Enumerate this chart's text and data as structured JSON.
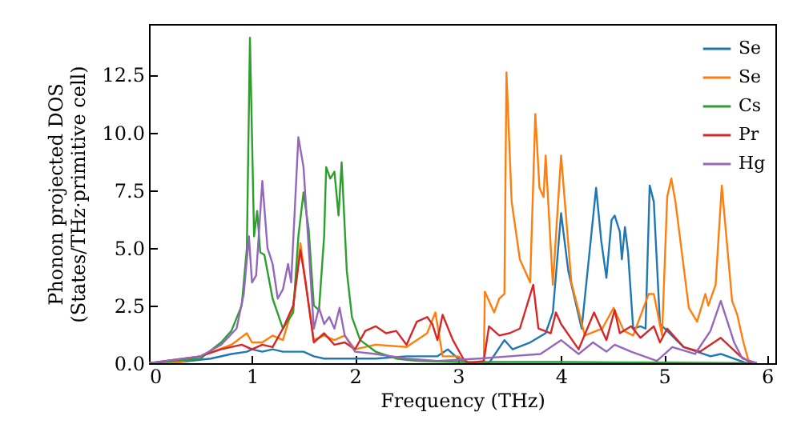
{
  "chart_data": {
    "type": "line",
    "xlabel": "Frequency (THz)",
    "ylabel": "Phonon projected DOS\n(States/THz·primitive cell)",
    "xlim": [
      0,
      6.08
    ],
    "ylim": [
      0,
      14.7
    ],
    "xticks": [
      0,
      1,
      2,
      3,
      4,
      5,
      6
    ],
    "yticks": [
      {
        "value": 0,
        "label": "0.0"
      },
      2.5,
      {
        "value": 5,
        "label": "5.0"
      },
      7.5,
      {
        "value": 10,
        "label": "10.0"
      },
      12.5
    ],
    "grid": false,
    "legend": "top right",
    "marker": "none",
    "line_style": "solid",
    "series": [
      {
        "name": "Se",
        "color": "#1f77b4",
        "x": [
          0,
          0.3,
          0.6,
          0.8,
          0.95,
          1.0,
          1.1,
          1.2,
          1.3,
          1.5,
          1.6,
          1.7,
          1.8,
          2.0,
          2.2,
          2.5,
          2.8,
          2.9,
          3.0,
          3.1,
          3.3,
          3.45,
          3.53,
          3.7,
          3.85,
          3.92,
          4.0,
          4.07,
          4.2,
          4.34,
          4.39,
          4.44,
          4.49,
          4.52,
          4.57,
          4.59,
          4.62,
          4.65,
          4.7,
          4.77,
          4.82,
          4.86,
          4.9,
          4.96,
          5.03,
          5.19,
          5.45,
          5.55,
          5.8,
          5.9
        ],
        "values": [
          0,
          0.05,
          0.2,
          0.4,
          0.5,
          0.6,
          0.5,
          0.6,
          0.5,
          0.5,
          0.3,
          0.2,
          0.2,
          0.2,
          0.2,
          0.3,
          0.3,
          0.6,
          0.2,
          0,
          0,
          1.0,
          0.6,
          0.9,
          1.3,
          2.2,
          6.5,
          4.0,
          1.5,
          7.6,
          5.3,
          3.7,
          6.2,
          6.4,
          5.7,
          4.5,
          5.9,
          4.8,
          1.5,
          1.6,
          1.5,
          7.7,
          7.0,
          1.7,
          1.4,
          0.7,
          0.3,
          0.4,
          0,
          0
        ]
      },
      {
        "name": "Se",
        "color": "#ff7f0e",
        "x": [
          0,
          0.3,
          0.5,
          0.8,
          0.95,
          1.0,
          1.1,
          1.2,
          1.3,
          1.4,
          1.47,
          1.52,
          1.6,
          1.7,
          1.8,
          1.9,
          2.0,
          2.2,
          2.5,
          2.7,
          2.78,
          2.85,
          3.0,
          3.09,
          3.25,
          3.26,
          3.35,
          3.4,
          3.45,
          3.47,
          3.52,
          3.6,
          3.7,
          3.75,
          3.79,
          3.83,
          3.85,
          3.92,
          4.0,
          4.1,
          4.23,
          4.4,
          4.51,
          4.61,
          4.7,
          4.85,
          4.9,
          4.98,
          5.03,
          5.07,
          5.11,
          5.24,
          5.32,
          5.4,
          5.43,
          5.5,
          5.56,
          5.66,
          5.71,
          5.77,
          5.82,
          5.9
        ],
        "values": [
          0,
          0.05,
          0.3,
          0.8,
          1.3,
          0.9,
          0.9,
          1.2,
          1.0,
          2.5,
          5.2,
          3.5,
          1.0,
          1.2,
          1.0,
          1.2,
          0.6,
          0.8,
          0.7,
          1.3,
          2.2,
          0.3,
          0.3,
          0,
          0,
          3.1,
          2.2,
          2.8,
          3.0,
          12.6,
          7,
          4.5,
          3.5,
          10.8,
          7.6,
          7.2,
          9.0,
          3.4,
          9.0,
          3.5,
          1.2,
          1.5,
          2.4,
          1.4,
          1.2,
          3.0,
          3.0,
          1.2,
          7.2,
          8.0,
          7.0,
          2.4,
          1.8,
          3.0,
          2.5,
          3.4,
          7.7,
          2.7,
          2.1,
          0.9,
          0.1,
          0
        ]
      },
      {
        "name": "Cs",
        "color": "#2ca02c",
        "x": [
          0,
          0.5,
          0.7,
          0.8,
          0.9,
          0.95,
          0.98,
          1.02,
          1.05,
          1.08,
          1.12,
          1.2,
          1.3,
          1.4,
          1.45,
          1.5,
          1.55,
          1.6,
          1.65,
          1.7,
          1.72,
          1.76,
          1.8,
          1.84,
          1.87,
          1.92,
          1.97,
          2.05,
          2.2,
          2.4,
          2.6,
          3.0,
          4.0,
          5.0,
          5.9
        ],
        "values": [
          0,
          0.2,
          0.9,
          1.4,
          2.5,
          5,
          14.1,
          5.5,
          6.6,
          4.8,
          4.7,
          2.8,
          1.5,
          2.2,
          5.5,
          7.4,
          5.8,
          2.5,
          2.3,
          5.5,
          8.5,
          8,
          8.3,
          6.4,
          8.7,
          4,
          2,
          1,
          0.5,
          0.2,
          0.1,
          0.05,
          0.05,
          0.03,
          0
        ]
      },
      {
        "name": "Pr",
        "color": "#d62728",
        "x": [
          0,
          0.5,
          0.7,
          0.9,
          1.0,
          1.1,
          1.2,
          1.3,
          1.4,
          1.47,
          1.52,
          1.6,
          1.7,
          1.8,
          1.9,
          2.0,
          2.1,
          2.2,
          2.3,
          2.4,
          2.5,
          2.6,
          2.7,
          2.75,
          2.8,
          2.85,
          2.95,
          3.05,
          3.1,
          3.25,
          3.3,
          3.4,
          3.5,
          3.6,
          3.73,
          3.78,
          3.9,
          3.95,
          4.0,
          4.17,
          4.32,
          4.44,
          4.52,
          4.57,
          4.68,
          4.77,
          4.9,
          4.96,
          5.03,
          5.19,
          5.35,
          5.55,
          5.74,
          5.85
        ],
        "values": [
          0,
          0.3,
          0.6,
          0.8,
          0.6,
          0.8,
          0.7,
          1.5,
          2.5,
          4.9,
          3.5,
          0.9,
          1.3,
          0.8,
          0.9,
          0.6,
          1.4,
          1.6,
          1.3,
          1.4,
          0.8,
          1.8,
          2.0,
          1.7,
          1.0,
          2.1,
          1.0,
          0.2,
          0,
          0.1,
          1.6,
          1.2,
          1.3,
          1.5,
          3.4,
          1.5,
          1.3,
          2.2,
          1.7,
          0.6,
          2.2,
          1.0,
          2.3,
          1.3,
          1.6,
          1.1,
          1.6,
          0.9,
          1.5,
          0.7,
          0.5,
          1.1,
          0.3,
          0
        ]
      },
      {
        "name": "Hg",
        "color": "#9467bd",
        "x": [
          0,
          0.5,
          0.7,
          0.85,
          0.92,
          0.97,
          1.0,
          1.04,
          1.1,
          1.15,
          1.2,
          1.25,
          1.3,
          1.35,
          1.38,
          1.45,
          1.5,
          1.55,
          1.6,
          1.65,
          1.7,
          1.75,
          1.8,
          1.85,
          1.9,
          2.0,
          2.2,
          2.5,
          2.8,
          3.2,
          3.5,
          3.8,
          4.0,
          4.17,
          4.31,
          4.44,
          4.52,
          4.68,
          4.93,
          5.08,
          5.3,
          5.45,
          5.55,
          5.68,
          5.76,
          5.9
        ],
        "values": [
          0,
          0.3,
          0.8,
          1.5,
          3,
          5.5,
          3.5,
          3.8,
          7.9,
          5,
          4.3,
          2.8,
          3.2,
          4.3,
          3.5,
          9.8,
          8.5,
          5,
          1.5,
          2.4,
          1.7,
          2.0,
          1.5,
          2.4,
          1.2,
          0.5,
          0.4,
          0.2,
          0.1,
          0.2,
          0.3,
          0.4,
          1.0,
          0.4,
          0.9,
          0.5,
          0.8,
          0.5,
          0.1,
          0.7,
          0.4,
          1.4,
          2.7,
          0.9,
          0.2,
          0
        ]
      }
    ]
  }
}
